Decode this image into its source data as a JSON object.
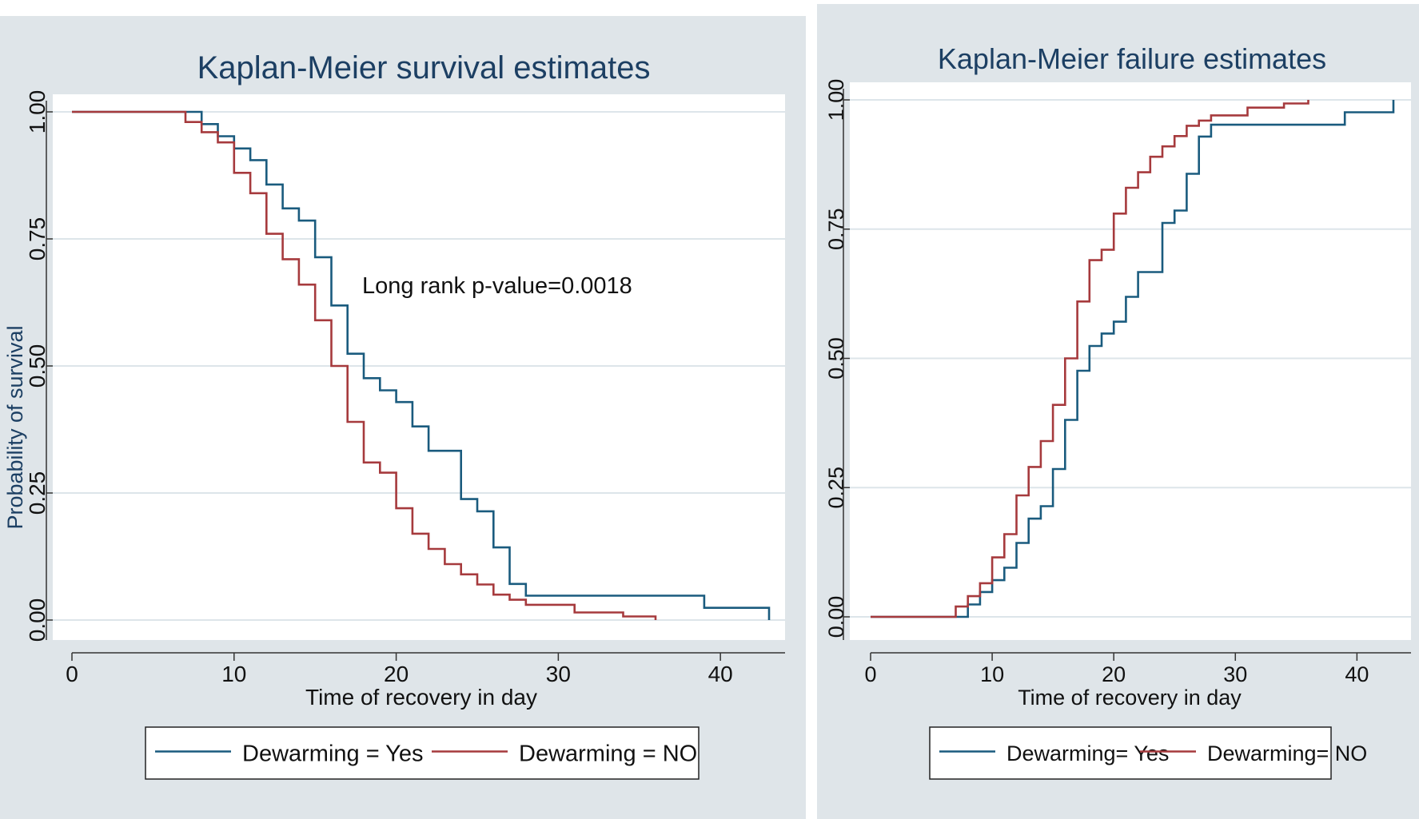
{
  "colors": {
    "yes": "#1a5b7e",
    "no": "#a63a3d",
    "panel_bg": "#dfe5e9",
    "title": "#1c3f63"
  },
  "chart_data": [
    {
      "type": "line",
      "step": true,
      "title": "Kaplan-Meier survival estimates",
      "xlabel": "Time of recovery in day",
      "ylabel": "Probability of survival",
      "xlim": [
        0,
        43
      ],
      "ylim": [
        0,
        1
      ],
      "xticks": [
        "0",
        "10",
        "20",
        "30",
        "40"
      ],
      "yticks": [
        "0.00",
        "0.25",
        "0.50",
        "0.75",
        "1.00"
      ],
      "grid": true,
      "annotation": "Long rank p-value=0.0018",
      "legend": [
        "Dewarming = Yes",
        "Dewarming = NO"
      ],
      "legend_position": "bottom",
      "series": [
        {
          "name": "Dewarming = Yes",
          "color": "#1a5b7e",
          "x": [
            0,
            8,
            9,
            10,
            11,
            12,
            13,
            14,
            15,
            16,
            17,
            18,
            19,
            20,
            21,
            22,
            24,
            25,
            26,
            27,
            28,
            39,
            43
          ],
          "y": [
            1.0,
            0.976,
            0.952,
            0.928,
            0.905,
            0.857,
            0.81,
            0.786,
            0.714,
            0.619,
            0.524,
            0.476,
            0.452,
            0.429,
            0.381,
            0.333,
            0.238,
            0.214,
            0.143,
            0.071,
            0.048,
            0.024,
            0.0
          ]
        },
        {
          "name": "Dewarming = NO",
          "color": "#a63a3d",
          "x": [
            0,
            7,
            8,
            9,
            10,
            11,
            12,
            13,
            14,
            15,
            16,
            17,
            18,
            19,
            20,
            21,
            22,
            23,
            24,
            25,
            26,
            27,
            28,
            31,
            34,
            36
          ],
          "y": [
            1.0,
            0.98,
            0.96,
            0.94,
            0.88,
            0.84,
            0.76,
            0.71,
            0.66,
            0.59,
            0.5,
            0.39,
            0.31,
            0.29,
            0.22,
            0.17,
            0.14,
            0.11,
            0.09,
            0.07,
            0.05,
            0.04,
            0.03,
            0.015,
            0.007,
            0.0
          ]
        }
      ]
    },
    {
      "type": "line",
      "step": true,
      "title": "Kaplan-Meier failure estimates",
      "xlabel": "Time of recovery in day",
      "ylabel": "",
      "xlim": [
        0,
        43
      ],
      "ylim": [
        0,
        1
      ],
      "xticks": [
        "0",
        "10",
        "20",
        "30",
        "40"
      ],
      "yticks": [
        "0.00",
        "0.25",
        "0.50",
        "0.75",
        "1.00"
      ],
      "grid": true,
      "legend": [
        "Dewarming= Yes",
        "Dewarming= NO"
      ],
      "legend_position": "bottom",
      "series": [
        {
          "name": "Dewarming= Yes",
          "color": "#1a5b7e",
          "x": [
            0,
            8,
            9,
            10,
            11,
            12,
            13,
            14,
            15,
            16,
            17,
            18,
            19,
            20,
            21,
            22,
            24,
            25,
            26,
            27,
            28,
            39,
            43
          ],
          "y": [
            0.0,
            0.024,
            0.048,
            0.071,
            0.095,
            0.143,
            0.19,
            0.214,
            0.286,
            0.381,
            0.476,
            0.524,
            0.548,
            0.571,
            0.619,
            0.667,
            0.762,
            0.786,
            0.857,
            0.929,
            0.952,
            0.976,
            1.0
          ]
        },
        {
          "name": "Dewarming= NO",
          "color": "#a63a3d",
          "x": [
            0,
            7,
            8,
            9,
            10,
            11,
            12,
            13,
            14,
            15,
            16,
            17,
            18,
            19,
            20,
            21,
            22,
            23,
            24,
            25,
            26,
            27,
            28,
            31,
            34,
            36
          ],
          "y": [
            0.0,
            0.02,
            0.04,
            0.065,
            0.115,
            0.16,
            0.235,
            0.29,
            0.34,
            0.41,
            0.5,
            0.61,
            0.69,
            0.71,
            0.78,
            0.83,
            0.86,
            0.89,
            0.91,
            0.93,
            0.95,
            0.96,
            0.97,
            0.985,
            0.993,
            1.0
          ]
        }
      ]
    }
  ]
}
